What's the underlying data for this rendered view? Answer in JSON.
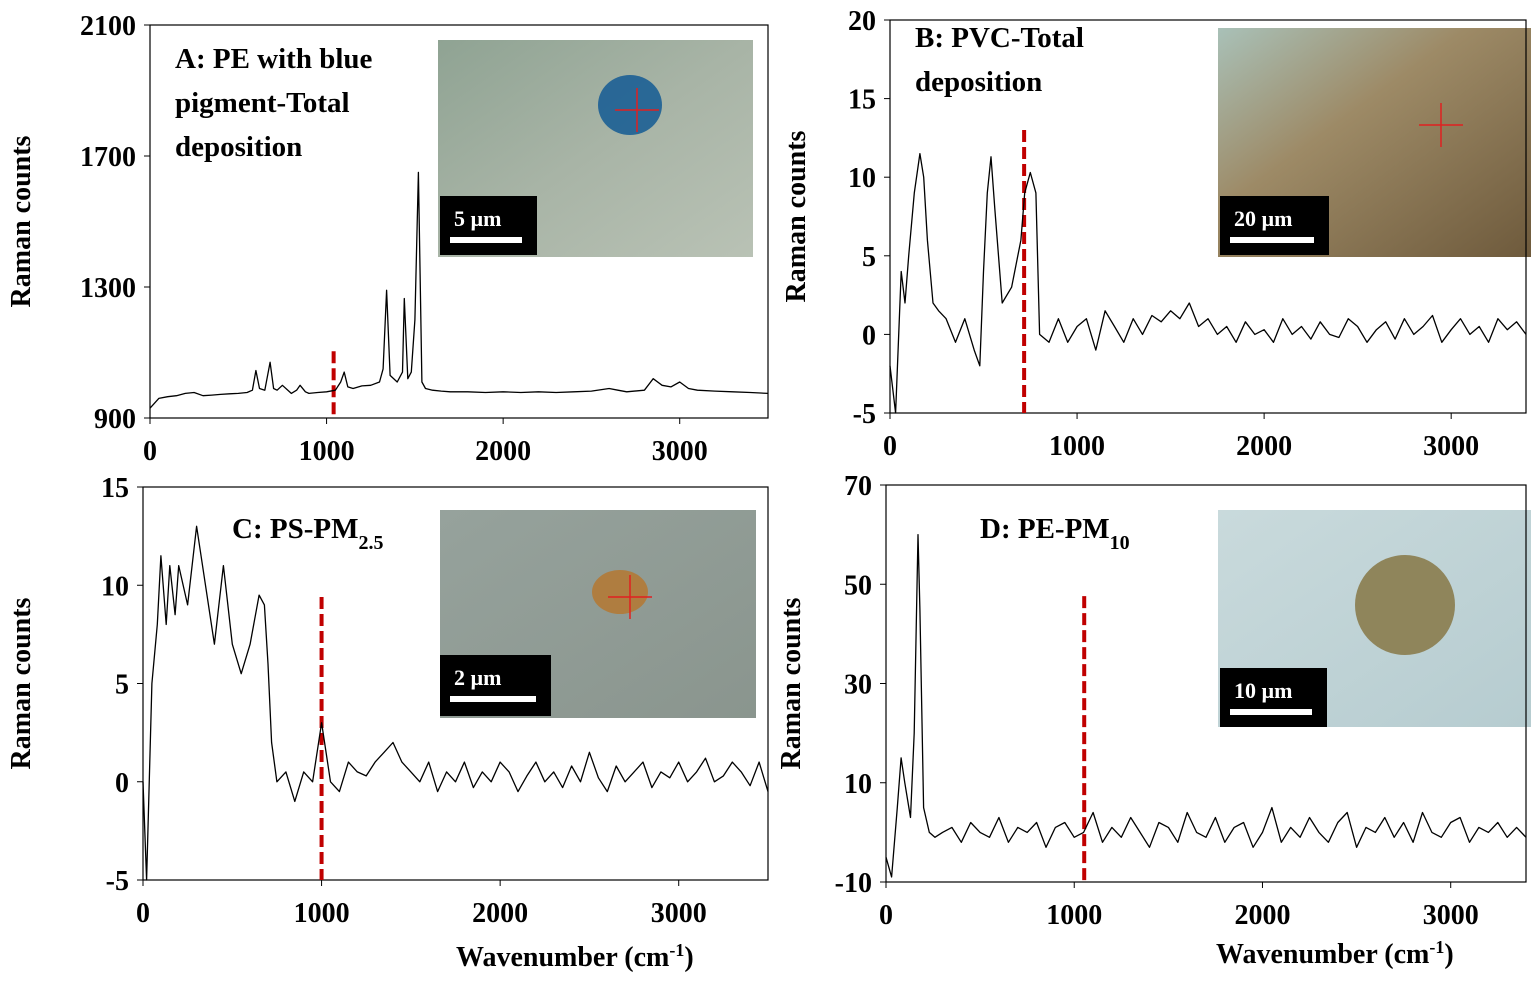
{
  "chart_data": [
    {
      "type": "line",
      "title_lines": [
        "A: PE with blue",
        "pigment-Total",
        "deposition"
      ],
      "ylabel": "Raman counts",
      "scale_bar": "5 µm",
      "xlim": [
        0,
        3500
      ],
      "ylim": [
        900,
        2100
      ],
      "xticks": [
        0,
        1000,
        2000,
        3000
      ],
      "yticks": [
        900,
        1300,
        1700,
        2100
      ],
      "color": "#000000",
      "marker_x": 1040,
      "marker_color": "#c00000",
      "x": [
        0,
        50,
        100,
        150,
        200,
        250,
        300,
        350,
        400,
        450,
        500,
        550,
        580,
        600,
        620,
        650,
        680,
        700,
        720,
        750,
        800,
        830,
        850,
        880,
        900,
        950,
        1000,
        1050,
        1080,
        1100,
        1120,
        1150,
        1200,
        1250,
        1300,
        1320,
        1340,
        1360,
        1400,
        1430,
        1440,
        1460,
        1480,
        1500,
        1520,
        1540,
        1560,
        1600,
        1650,
        1700,
        1800,
        1900,
        2000,
        2100,
        2200,
        2300,
        2400,
        2500,
        2600,
        2650,
        2700,
        2800,
        2850,
        2900,
        2950,
        3000,
        3050,
        3100,
        3200,
        3300,
        3400,
        3500
      ],
      "values": [
        930,
        960,
        965,
        968,
        975,
        978,
        968,
        970,
        972,
        974,
        975,
        978,
        985,
        1045,
        990,
        985,
        1070,
        990,
        985,
        1000,
        975,
        985,
        1000,
        980,
        975,
        978,
        980,
        985,
        1010,
        1040,
        995,
        990,
        998,
        1000,
        1010,
        1050,
        1290,
        1030,
        1010,
        1040,
        1265,
        1020,
        1040,
        1200,
        1650,
        1010,
        990,
        985,
        982,
        980,
        980,
        978,
        980,
        978,
        980,
        978,
        980,
        982,
        990,
        985,
        980,
        985,
        1020,
        1000,
        995,
        1010,
        990,
        985,
        982,
        980,
        978,
        975
      ]
    },
    {
      "type": "line",
      "title_lines": [
        "B: PVC-Total",
        "deposition"
      ],
      "ylabel": "Raman counts",
      "scale_bar": "20 µm",
      "xlim": [
        0,
        3400
      ],
      "ylim": [
        -5,
        20
      ],
      "xticks": [
        0,
        1000,
        2000,
        3000
      ],
      "yticks": [
        -5,
        0,
        5,
        10,
        15,
        20
      ],
      "color": "#000000",
      "marker_x": 717,
      "marker_color": "#c00000",
      "x": [
        0,
        30,
        60,
        80,
        100,
        130,
        160,
        180,
        200,
        230,
        260,
        300,
        350,
        400,
        450,
        480,
        500,
        520,
        540,
        560,
        600,
        650,
        700,
        720,
        750,
        780,
        800,
        850,
        900,
        950,
        1000,
        1050,
        1100,
        1150,
        1200,
        1250,
        1300,
        1350,
        1400,
        1450,
        1500,
        1550,
        1600,
        1650,
        1700,
        1750,
        1800,
        1850,
        1900,
        1950,
        2000,
        2050,
        2100,
        2150,
        2200,
        2250,
        2300,
        2350,
        2400,
        2450,
        2500,
        2550,
        2600,
        2650,
        2700,
        2750,
        2800,
        2850,
        2900,
        2950,
        3000,
        3050,
        3100,
        3150,
        3200,
        3250,
        3300,
        3350,
        3400
      ],
      "values": [
        -2,
        -5,
        4,
        2,
        5,
        9,
        11.5,
        10,
        6,
        2,
        1.5,
        1,
        -0.5,
        1,
        -1,
        -2,
        4,
        9,
        11.3,
        8,
        2,
        3,
        6,
        9,
        10.3,
        9,
        0,
        -0.5,
        1,
        -0.5,
        0.5,
        1,
        -1,
        1.5,
        0.5,
        -0.5,
        1,
        0,
        1.2,
        0.8,
        1.5,
        1,
        2,
        0.5,
        1,
        0,
        0.5,
        -0.5,
        0.8,
        0,
        0.3,
        -0.5,
        1,
        0,
        0.5,
        -0.3,
        0.8,
        0,
        -0.2,
        1,
        0.5,
        -0.5,
        0.3,
        0.8,
        -0.3,
        1,
        0,
        0.5,
        1.2,
        -0.5,
        0.3,
        1,
        0,
        0.5,
        -0.5,
        1,
        0.3,
        0.8,
        0
      ]
    },
    {
      "type": "line",
      "title": "C: PS-PM",
      "title_subscript": "2.5",
      "ylabel": "Raman counts",
      "scale_bar": "2 µm",
      "xlabel": "Wavenumber (cm",
      "xlabel_superscript": "-1",
      "xlabel_end": ")",
      "xlim": [
        0,
        3500
      ],
      "ylim": [
        -5,
        15
      ],
      "xticks": [
        0,
        1000,
        2000,
        3000
      ],
      "yticks": [
        -5,
        0,
        5,
        10,
        15
      ],
      "color": "#000000",
      "marker_x": 1000,
      "marker_color": "#c00000",
      "x": [
        0,
        20,
        50,
        80,
        100,
        130,
        150,
        180,
        200,
        250,
        300,
        350,
        400,
        450,
        500,
        550,
        600,
        650,
        680,
        700,
        720,
        750,
        800,
        850,
        900,
        950,
        1000,
        1050,
        1100,
        1150,
        1200,
        1250,
        1300,
        1350,
        1400,
        1450,
        1500,
        1550,
        1600,
        1650,
        1700,
        1750,
        1800,
        1850,
        1900,
        1950,
        2000,
        2050,
        2100,
        2150,
        2200,
        2250,
        2300,
        2350,
        2400,
        2450,
        2500,
        2550,
        2600,
        2650,
        2700,
        2750,
        2800,
        2850,
        2900,
        2950,
        3000,
        3050,
        3100,
        3150,
        3200,
        3250,
        3300,
        3350,
        3400,
        3450,
        3500
      ],
      "values": [
        0,
        -5,
        5,
        8,
        11.5,
        8,
        11,
        8.5,
        11,
        9,
        13,
        10,
        7,
        11,
        7,
        5.5,
        7,
        9.5,
        9,
        6,
        2,
        0,
        0.5,
        -1,
        0.5,
        0,
        3,
        0,
        -0.5,
        1,
        0.5,
        0.3,
        1,
        1.5,
        2,
        1,
        0.5,
        0,
        1,
        -0.5,
        0.5,
        0,
        1,
        -0.3,
        0.5,
        0,
        1,
        0.5,
        -0.5,
        0.3,
        1,
        0,
        0.5,
        -0.3,
        0.8,
        0,
        1.5,
        0.2,
        -0.5,
        0.8,
        0,
        0.5,
        1,
        -0.3,
        0.5,
        0.2,
        1,
        0,
        0.5,
        1.2,
        0,
        0.3,
        1,
        0.5,
        -0.2,
        1,
        -0.5
      ]
    },
    {
      "type": "line",
      "title": "D: PE-PM",
      "title_subscript": "10",
      "ylabel": "Raman counts",
      "scale_bar": "10 µm",
      "xlabel": "Wavenumber (cm",
      "xlabel_superscript": "-1",
      "xlabel_end": ")",
      "xlim": [
        0,
        3400
      ],
      "ylim": [
        -10,
        70
      ],
      "xticks": [
        0,
        1000,
        2000,
        3000
      ],
      "yticks": [
        -10,
        10,
        30,
        50,
        70
      ],
      "color": "#000000",
      "marker_x": 1053,
      "marker_color": "#c00000",
      "x": [
        0,
        30,
        60,
        80,
        100,
        130,
        150,
        170,
        180,
        200,
        230,
        260,
        300,
        350,
        400,
        450,
        500,
        550,
        600,
        650,
        700,
        750,
        800,
        850,
        900,
        950,
        1000,
        1050,
        1100,
        1150,
        1200,
        1250,
        1300,
        1350,
        1400,
        1450,
        1500,
        1550,
        1600,
        1650,
        1700,
        1750,
        1800,
        1850,
        1900,
        1950,
        2000,
        2050,
        2100,
        2150,
        2200,
        2250,
        2300,
        2350,
        2400,
        2450,
        2500,
        2550,
        2600,
        2650,
        2700,
        2750,
        2800,
        2850,
        2900,
        2950,
        3000,
        3050,
        3100,
        3150,
        3200,
        3250,
        3300,
        3350,
        3400
      ],
      "values": [
        -5,
        -9,
        5,
        15,
        10,
        3,
        20,
        60,
        45,
        5,
        0,
        -1,
        0,
        1,
        -2,
        2,
        0,
        -1,
        3,
        -2,
        1,
        0,
        2,
        -3,
        1,
        2,
        -1,
        0,
        4,
        -2,
        1,
        -1,
        3,
        0,
        -3,
        2,
        1,
        -2,
        4,
        0,
        -1,
        3,
        -2,
        1,
        2,
        -3,
        0,
        5,
        -2,
        1,
        -1,
        3,
        0,
        -2,
        2,
        4,
        -3,
        1,
        0,
        3,
        -1,
        2,
        -2,
        4,
        0,
        -1,
        2,
        3,
        -2,
        1,
        0,
        2,
        -1,
        1,
        -1
      ]
    }
  ]
}
